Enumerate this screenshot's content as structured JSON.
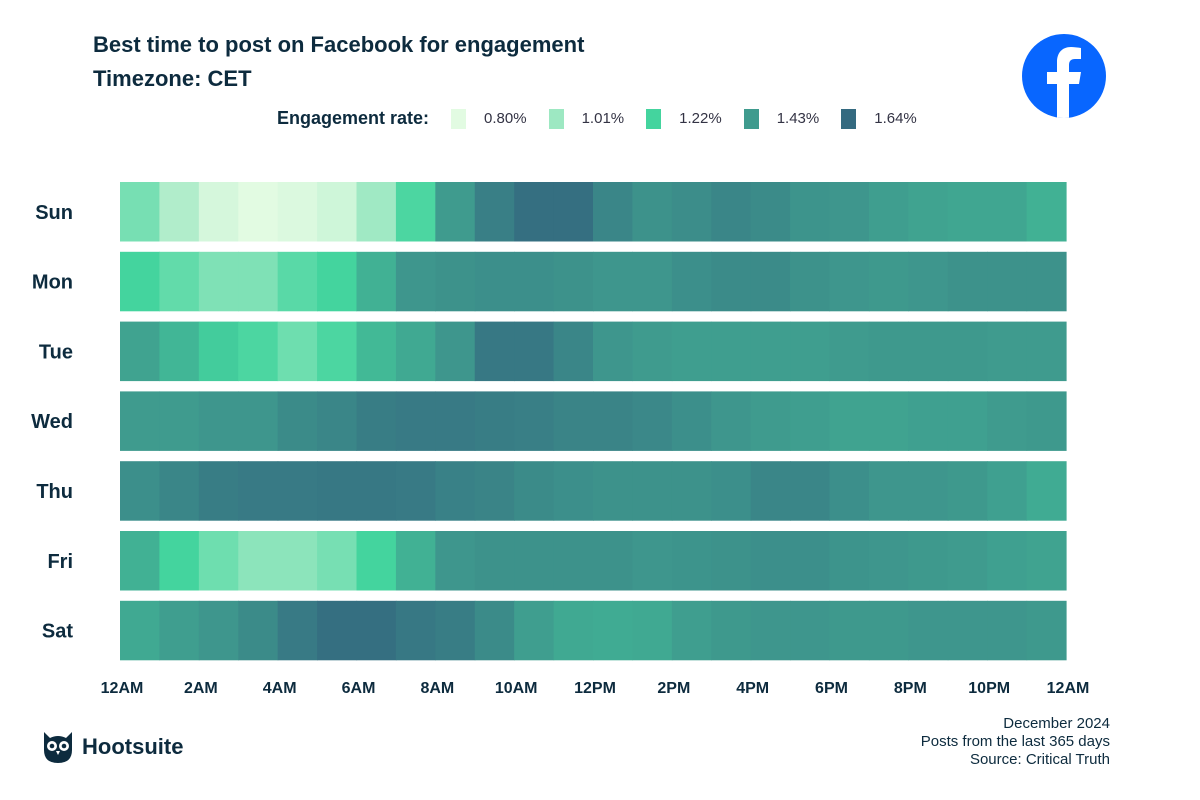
{
  "title": "Best time to post on Facebook for engagement",
  "subtitle": "Timezone: CET",
  "legend": {
    "title": "Engagement rate:",
    "items": [
      {
        "label": "0.80%",
        "value": 0.8,
        "color": "#e2fbe2"
      },
      {
        "label": "1.01%",
        "value": 1.01,
        "color": "#9de8c2"
      },
      {
        "label": "1.22%",
        "value": 1.22,
        "color": "#44d49e"
      },
      {
        "label": "1.43%",
        "value": 1.43,
        "color": "#3f9b8e"
      },
      {
        "label": "1.64%",
        "value": 1.64,
        "color": "#346a80"
      }
    ]
  },
  "footer": {
    "brand": "Hootsuite",
    "date": "December 2024",
    "period": "Posts from the last 365 days",
    "source": "Source: Critical Truth"
  },
  "chart_data": {
    "type": "heatmap",
    "xlabel": "",
    "ylabel": "",
    "x_tick_labels": [
      "12AM",
      "2AM",
      "4AM",
      "6AM",
      "8AM",
      "10AM",
      "12PM",
      "2PM",
      "4PM",
      "6PM",
      "8PM",
      "10PM",
      "12AM"
    ],
    "days": [
      "Sun",
      "Mon",
      "Tue",
      "Wed",
      "Thu",
      "Fri",
      "Sat"
    ],
    "hours": [
      0,
      1,
      2,
      3,
      4,
      5,
      6,
      7,
      8,
      9,
      10,
      11,
      12,
      13,
      14,
      15,
      16,
      17,
      18,
      19,
      20,
      21,
      22,
      23
    ],
    "unit": "%",
    "values": [
      [
        1.1,
        0.95,
        0.84,
        0.8,
        0.82,
        0.86,
        1.0,
        1.2,
        1.43,
        1.55,
        1.62,
        1.62,
        1.52,
        1.47,
        1.49,
        1.52,
        1.5,
        1.46,
        1.45,
        1.42,
        1.4,
        1.39,
        1.39,
        1.35
      ],
      [
        1.22,
        1.15,
        1.08,
        1.08,
        1.17,
        1.22,
        1.35,
        1.45,
        1.47,
        1.48,
        1.48,
        1.47,
        1.45,
        1.45,
        1.48,
        1.5,
        1.5,
        1.47,
        1.45,
        1.44,
        1.45,
        1.47,
        1.47,
        1.47
      ],
      [
        1.4,
        1.33,
        1.25,
        1.2,
        1.12,
        1.2,
        1.32,
        1.38,
        1.45,
        1.58,
        1.58,
        1.52,
        1.45,
        1.43,
        1.42,
        1.42,
        1.42,
        1.42,
        1.43,
        1.44,
        1.44,
        1.44,
        1.43,
        1.43
      ],
      [
        1.43,
        1.43,
        1.45,
        1.45,
        1.5,
        1.52,
        1.56,
        1.57,
        1.57,
        1.56,
        1.55,
        1.53,
        1.53,
        1.51,
        1.48,
        1.45,
        1.43,
        1.42,
        1.4,
        1.4,
        1.41,
        1.41,
        1.43,
        1.44
      ],
      [
        1.48,
        1.52,
        1.56,
        1.57,
        1.57,
        1.58,
        1.58,
        1.57,
        1.54,
        1.53,
        1.5,
        1.48,
        1.47,
        1.47,
        1.47,
        1.48,
        1.52,
        1.52,
        1.48,
        1.45,
        1.45,
        1.44,
        1.41,
        1.37
      ],
      [
        1.35,
        1.22,
        1.12,
        1.05,
        1.05,
        1.1,
        1.22,
        1.35,
        1.45,
        1.47,
        1.47,
        1.47,
        1.47,
        1.45,
        1.46,
        1.47,
        1.48,
        1.48,
        1.46,
        1.45,
        1.44,
        1.43,
        1.41,
        1.4
      ],
      [
        1.38,
        1.42,
        1.45,
        1.5,
        1.57,
        1.62,
        1.62,
        1.58,
        1.56,
        1.5,
        1.42,
        1.38,
        1.37,
        1.38,
        1.42,
        1.44,
        1.45,
        1.45,
        1.44,
        1.44,
        1.45,
        1.45,
        1.45,
        1.44
      ]
    ],
    "legend_placement": "top",
    "grid": false
  }
}
